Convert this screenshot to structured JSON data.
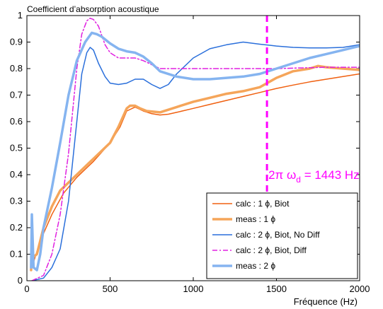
{
  "chart_data": {
    "type": "line",
    "title": "Coefficient d’absorption acoustique",
    "xlabel": "Fréquence (Hz)",
    "ylabel": "",
    "xlim": [
      0,
      2000
    ],
    "ylim": [
      0,
      1
    ],
    "xticks": [
      0,
      500,
      1000,
      1500,
      2000
    ],
    "yticks": [
      0,
      0.1,
      0.2,
      0.3,
      0.4,
      0.5,
      0.6,
      0.7,
      0.8,
      0.9,
      1
    ],
    "grid": false,
    "legend_position": "bottom-right",
    "annotation": {
      "prefix": "2π ω",
      "subscript": "d",
      "suffix": " = 1443 Hz",
      "x": 1443,
      "color": "#ff00ff"
    },
    "series": [
      {
        "name": "calc : 1 ϕ, Biot",
        "color": "#f06010",
        "style": "solid",
        "x": [
          30,
          80,
          150,
          220,
          300,
          400,
          500,
          560,
          600,
          650,
          700,
          750,
          800,
          850,
          900,
          1000,
          1100,
          1200,
          1300,
          1400,
          1500,
          1600,
          1700,
          1800,
          1900,
          2000
        ],
        "y": [
          0.05,
          0.15,
          0.25,
          0.33,
          0.39,
          0.45,
          0.52,
          0.58,
          0.64,
          0.655,
          0.64,
          0.63,
          0.625,
          0.628,
          0.635,
          0.65,
          0.665,
          0.68,
          0.695,
          0.71,
          0.725,
          0.738,
          0.75,
          0.76,
          0.77,
          0.78
        ]
      },
      {
        "name": "meas : 1 ϕ",
        "color": "#f5a55a",
        "style": "thick",
        "x": [
          25,
          30,
          40,
          60,
          100,
          150,
          200,
          300,
          400,
          500,
          550,
          600,
          620,
          650,
          680,
          720,
          800,
          900,
          1000,
          1100,
          1200,
          1300,
          1400,
          1500,
          1600,
          1700,
          1750,
          1800,
          1900,
          2000
        ],
        "y": [
          0.04,
          0.1,
          0.09,
          0.1,
          0.2,
          0.28,
          0.34,
          0.4,
          0.46,
          0.52,
          0.58,
          0.65,
          0.66,
          0.66,
          0.65,
          0.64,
          0.635,
          0.655,
          0.675,
          0.69,
          0.705,
          0.715,
          0.73,
          0.765,
          0.79,
          0.8,
          0.81,
          0.805,
          0.8,
          0.795
        ]
      },
      {
        "name": "calc : 2 ϕ, Biot, No Diff",
        "color": "#2a6fdb",
        "style": "solid",
        "x": [
          30,
          100,
          150,
          200,
          250,
          300,
          330,
          360,
          380,
          400,
          430,
          470,
          500,
          550,
          600,
          650,
          700,
          750,
          800,
          850,
          900,
          1000,
          1100,
          1200,
          1300,
          1400,
          1500,
          1600,
          1700,
          1800,
          1900,
          2000
        ],
        "y": [
          0.0,
          0.01,
          0.05,
          0.12,
          0.3,
          0.6,
          0.78,
          0.86,
          0.88,
          0.87,
          0.82,
          0.77,
          0.745,
          0.74,
          0.745,
          0.76,
          0.76,
          0.74,
          0.725,
          0.74,
          0.78,
          0.84,
          0.875,
          0.89,
          0.9,
          0.892,
          0.885,
          0.88,
          0.878,
          0.878,
          0.88,
          0.89
        ]
      },
      {
        "name": "calc : 2 ϕ, Biot, Diff",
        "color": "#e020e0",
        "style": "dashdot",
        "x": [
          30,
          100,
          150,
          200,
          250,
          300,
          330,
          360,
          380,
          400,
          430,
          470,
          500,
          550,
          600,
          650,
          700,
          800,
          900,
          1000,
          1200,
          1500,
          1800,
          2000
        ],
        "y": [
          0.0,
          0.02,
          0.1,
          0.25,
          0.48,
          0.8,
          0.93,
          0.98,
          0.99,
          0.985,
          0.96,
          0.89,
          0.86,
          0.84,
          0.84,
          0.84,
          0.83,
          0.8,
          0.8,
          0.8,
          0.8,
          0.8,
          0.805,
          0.805
        ]
      },
      {
        "name": "meas : 2 ϕ",
        "color": "#85b4f0",
        "style": "thick",
        "x": [
          25,
          30,
          40,
          60,
          80,
          100,
          150,
          200,
          250,
          300,
          350,
          390,
          420,
          450,
          500,
          550,
          600,
          650,
          700,
          750,
          800,
          900,
          1000,
          1100,
          1200,
          1300,
          1400,
          1500,
          1600,
          1700,
          1800,
          1900,
          2000
        ],
        "y": [
          0.05,
          0.25,
          0.05,
          0.04,
          0.1,
          0.2,
          0.35,
          0.52,
          0.7,
          0.83,
          0.9,
          0.935,
          0.93,
          0.92,
          0.895,
          0.875,
          0.865,
          0.86,
          0.845,
          0.82,
          0.79,
          0.77,
          0.76,
          0.76,
          0.765,
          0.77,
          0.78,
          0.8,
          0.82,
          0.84,
          0.855,
          0.87,
          0.885
        ]
      }
    ]
  }
}
